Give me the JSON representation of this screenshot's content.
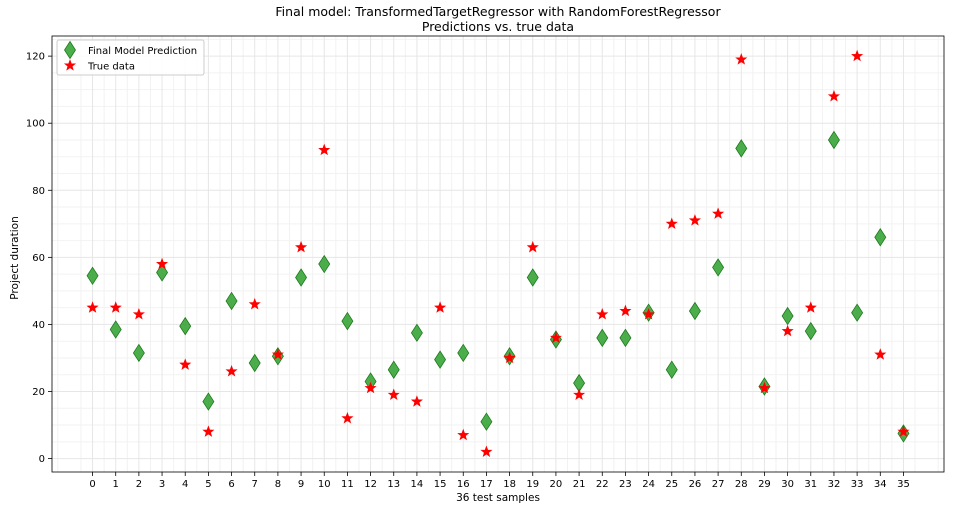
{
  "chart_data": {
    "type": "scatter",
    "title": "Final model: TransformedTargetRegressor with RandomForestRegressor",
    "subtitle": "Predictions vs. true data",
    "xlabel": "36 test samples",
    "ylabel": "Project duration",
    "xlim": [
      -1.75,
      36.75
    ],
    "ylim": [
      -4,
      126
    ],
    "x_ticks": [
      0,
      1,
      2,
      3,
      4,
      5,
      6,
      7,
      8,
      9,
      10,
      11,
      12,
      13,
      14,
      15,
      16,
      17,
      18,
      19,
      20,
      21,
      22,
      23,
      24,
      25,
      26,
      27,
      28,
      29,
      30,
      31,
      32,
      33,
      34,
      35
    ],
    "y_ticks": [
      0,
      20,
      40,
      60,
      80,
      100,
      120
    ],
    "grid": true,
    "legend_position": "top-left",
    "series": [
      {
        "name": "Final Model Prediction",
        "marker": "diamond",
        "color": "#2ca02c",
        "x": [
          0,
          1,
          2,
          3,
          4,
          5,
          6,
          7,
          8,
          9,
          10,
          11,
          12,
          13,
          14,
          15,
          16,
          17,
          18,
          19,
          20,
          21,
          22,
          23,
          24,
          25,
          26,
          27,
          28,
          29,
          30,
          31,
          32,
          33,
          34,
          35
        ],
        "values": [
          54.5,
          38.5,
          31.5,
          55.5,
          39.5,
          17,
          47,
          28.5,
          30.5,
          54,
          58,
          41,
          23,
          26.5,
          37.5,
          29.5,
          31.5,
          11,
          30.5,
          54,
          35.5,
          22.5,
          36,
          36,
          43.5,
          26.5,
          44,
          57,
          92.5,
          21.5,
          42.5,
          38,
          95,
          43.5,
          66,
          7.5
        ]
      },
      {
        "name": "True data",
        "marker": "star",
        "color": "#ff0000",
        "x": [
          0,
          1,
          2,
          3,
          4,
          5,
          6,
          7,
          8,
          9,
          10,
          11,
          12,
          13,
          14,
          15,
          16,
          17,
          18,
          19,
          20,
          21,
          22,
          23,
          24,
          25,
          26,
          27,
          28,
          29,
          30,
          31,
          32,
          33,
          34,
          35
        ],
        "values": [
          45,
          45,
          43,
          58,
          28,
          8,
          26,
          46,
          31,
          63,
          92,
          12,
          21,
          19,
          17,
          45,
          7,
          2,
          30,
          63,
          36,
          19,
          43,
          44,
          43,
          70,
          71,
          73,
          119,
          21,
          38,
          45,
          108,
          120,
          31,
          8
        ]
      }
    ]
  }
}
